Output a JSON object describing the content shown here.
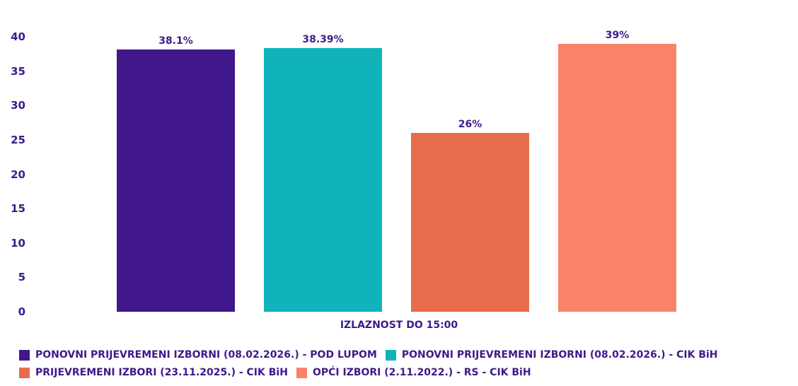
{
  "chart_data": {
    "type": "bar",
    "title": "",
    "xlabel": "IZLAZNOST DO 15:00",
    "ylabel": "",
    "categories": [
      "IZLAZNOST DO 15:00"
    ],
    "ylim": [
      0,
      40
    ],
    "yticks": [
      0,
      5,
      10,
      15,
      20,
      25,
      30,
      35,
      40
    ],
    "grid": false,
    "legend_position": "bottom",
    "series": [
      {
        "name": "PONOVNI PRIJEVREMENI IZBORNI (08.02.2026.) - POD LUPOM",
        "values": [
          38.1
        ],
        "label": "38.1%",
        "color": "#41188c"
      },
      {
        "name": "PONOVNI PRIJEVREMENI IZBORNI (08.02.2026.) - CIK BiH",
        "values": [
          38.39
        ],
        "label": "38.39%",
        "color": "#10b3b9"
      },
      {
        "name": "PRIJEVREMENI IZBORI (23.11.2025.) - CIK BiH",
        "values": [
          26
        ],
        "label": "26%",
        "color": "#e66c4d"
      },
      {
        "name": "OPĆI IZBORI (2.11.2022.) - RS - CIK BiH",
        "values": [
          39
        ],
        "label": "39%",
        "color": "#f98367"
      }
    ]
  },
  "yticks_labels": [
    "40",
    "35",
    "30",
    "25",
    "20",
    "15",
    "10",
    "5",
    "0"
  ]
}
